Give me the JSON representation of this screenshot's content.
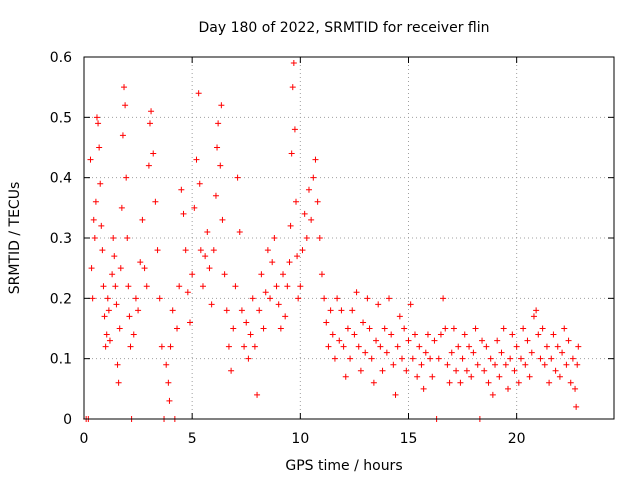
{
  "chart_data": {
    "type": "scatter",
    "title": "Day 180 of 2022, SRMTID for receiver flin",
    "xlabel": "GPS time / hours",
    "ylabel": "SRMTID / TECUs",
    "xlim": [
      0,
      24.5
    ],
    "ylim": [
      0,
      0.6
    ],
    "x_ticks": [
      0,
      5,
      10,
      15,
      20
    ],
    "x_tick_labels": [
      "0",
      "5",
      "10",
      "15",
      "20"
    ],
    "y_ticks": [
      0,
      0.1,
      0.2,
      0.3,
      0.4,
      0.5,
      0.6
    ],
    "y_tick_labels": [
      "0",
      "0.1",
      "0.2",
      "0.3",
      "0.4",
      "0.5",
      "0.6"
    ],
    "grid": true,
    "marker": "+",
    "color": "#ff0000",
    "series": [
      {
        "name": "SRMTID",
        "points": [
          [
            0.1,
            0.0
          ],
          [
            0.2,
            0.0
          ],
          [
            0.3,
            0.43
          ],
          [
            0.35,
            0.25
          ],
          [
            0.4,
            0.2
          ],
          [
            0.45,
            0.33
          ],
          [
            0.5,
            0.3
          ],
          [
            0.55,
            0.36
          ],
          [
            0.6,
            0.5
          ],
          [
            0.65,
            0.49
          ],
          [
            0.7,
            0.45
          ],
          [
            0.75,
            0.39
          ],
          [
            0.8,
            0.32
          ],
          [
            0.85,
            0.28
          ],
          [
            0.9,
            0.22
          ],
          [
            0.95,
            0.17
          ],
          [
            1.0,
            0.12
          ],
          [
            1.05,
            0.14
          ],
          [
            1.1,
            0.2
          ],
          [
            1.15,
            0.18
          ],
          [
            1.2,
            0.13
          ],
          [
            1.3,
            0.24
          ],
          [
            1.35,
            0.3
          ],
          [
            1.4,
            0.27
          ],
          [
            1.45,
            0.22
          ],
          [
            1.5,
            0.19
          ],
          [
            1.55,
            0.09
          ],
          [
            1.6,
            0.06
          ],
          [
            1.65,
            0.15
          ],
          [
            1.7,
            0.25
          ],
          [
            1.75,
            0.35
          ],
          [
            1.8,
            0.47
          ],
          [
            1.85,
            0.55
          ],
          [
            1.9,
            0.52
          ],
          [
            1.95,
            0.4
          ],
          [
            2.0,
            0.3
          ],
          [
            2.05,
            0.22
          ],
          [
            2.1,
            0.17
          ],
          [
            2.15,
            0.12
          ],
          [
            2.2,
            0.0
          ],
          [
            2.3,
            0.14
          ],
          [
            2.4,
            0.2
          ],
          [
            2.5,
            0.18
          ],
          [
            2.6,
            0.26
          ],
          [
            2.7,
            0.33
          ],
          [
            2.8,
            0.25
          ],
          [
            2.9,
            0.22
          ],
          [
            3.0,
            0.42
          ],
          [
            3.05,
            0.49
          ],
          [
            3.1,
            0.51
          ],
          [
            3.2,
            0.44
          ],
          [
            3.3,
            0.36
          ],
          [
            3.4,
            0.28
          ],
          [
            3.5,
            0.2
          ],
          [
            3.6,
            0.12
          ],
          [
            3.7,
            0.0
          ],
          [
            3.8,
            0.09
          ],
          [
            3.9,
            0.06
          ],
          [
            3.95,
            0.03
          ],
          [
            4.0,
            0.12
          ],
          [
            4.1,
            0.18
          ],
          [
            4.2,
            0.0
          ],
          [
            4.3,
            0.15
          ],
          [
            4.4,
            0.22
          ],
          [
            4.5,
            0.38
          ],
          [
            4.6,
            0.34
          ],
          [
            4.7,
            0.28
          ],
          [
            4.8,
            0.21
          ],
          [
            4.9,
            0.16
          ],
          [
            5.0,
            0.24
          ],
          [
            5.1,
            0.35
          ],
          [
            5.2,
            0.43
          ],
          [
            5.3,
            0.54
          ],
          [
            5.35,
            0.39
          ],
          [
            5.4,
            0.28
          ],
          [
            5.5,
            0.22
          ],
          [
            5.6,
            0.27
          ],
          [
            5.7,
            0.31
          ],
          [
            5.8,
            0.25
          ],
          [
            5.9,
            0.19
          ],
          [
            6.0,
            0.28
          ],
          [
            6.1,
            0.37
          ],
          [
            6.15,
            0.45
          ],
          [
            6.2,
            0.49
          ],
          [
            6.3,
            0.42
          ],
          [
            6.35,
            0.52
          ],
          [
            6.4,
            0.33
          ],
          [
            6.5,
            0.24
          ],
          [
            6.6,
            0.18
          ],
          [
            6.7,
            0.12
          ],
          [
            6.8,
            0.08
          ],
          [
            6.9,
            0.15
          ],
          [
            7.0,
            0.22
          ],
          [
            7.1,
            0.4
          ],
          [
            7.2,
            0.31
          ],
          [
            7.3,
            0.18
          ],
          [
            7.4,
            0.12
          ],
          [
            7.5,
            0.16
          ],
          [
            7.6,
            0.1
          ],
          [
            7.7,
            0.14
          ],
          [
            7.8,
            0.2
          ],
          [
            7.9,
            0.12
          ],
          [
            8.0,
            0.04
          ],
          [
            8.1,
            0.18
          ],
          [
            8.2,
            0.24
          ],
          [
            8.3,
            0.15
          ],
          [
            8.4,
            0.21
          ],
          [
            8.5,
            0.28
          ],
          [
            8.6,
            0.2
          ],
          [
            8.7,
            0.26
          ],
          [
            8.8,
            0.3
          ],
          [
            8.9,
            0.22
          ],
          [
            9.0,
            0.19
          ],
          [
            9.1,
            0.15
          ],
          [
            9.2,
            0.24
          ],
          [
            9.3,
            0.17
          ],
          [
            9.4,
            0.22
          ],
          [
            9.5,
            0.26
          ],
          [
            9.55,
            0.32
          ],
          [
            9.6,
            0.44
          ],
          [
            9.65,
            0.55
          ],
          [
            9.7,
            0.59
          ],
          [
            9.75,
            0.48
          ],
          [
            9.8,
            0.36
          ],
          [
            9.85,
            0.27
          ],
          [
            9.9,
            0.2
          ],
          [
            10.0,
            0.22
          ],
          [
            10.1,
            0.28
          ],
          [
            10.2,
            0.34
          ],
          [
            10.3,
            0.3
          ],
          [
            10.4,
            0.38
          ],
          [
            10.5,
            0.33
          ],
          [
            10.6,
            0.4
          ],
          [
            10.7,
            0.43
          ],
          [
            10.8,
            0.36
          ],
          [
            10.9,
            0.3
          ],
          [
            11.0,
            0.24
          ],
          [
            11.1,
            0.2
          ],
          [
            11.2,
            0.16
          ],
          [
            11.3,
            0.12
          ],
          [
            11.4,
            0.18
          ],
          [
            11.5,
            0.14
          ],
          [
            11.6,
            0.1
          ],
          [
            11.7,
            0.2
          ],
          [
            11.8,
            0.13
          ],
          [
            11.9,
            0.18
          ],
          [
            12.0,
            0.12
          ],
          [
            12.1,
            0.07
          ],
          [
            12.2,
            0.15
          ],
          [
            12.3,
            0.1
          ],
          [
            12.4,
            0.18
          ],
          [
            12.5,
            0.14
          ],
          [
            12.6,
            0.21
          ],
          [
            12.7,
            0.12
          ],
          [
            12.8,
            0.08
          ],
          [
            12.9,
            0.16
          ],
          [
            13.0,
            0.11
          ],
          [
            13.1,
            0.2
          ],
          [
            13.2,
            0.15
          ],
          [
            13.3,
            0.1
          ],
          [
            13.4,
            0.06
          ],
          [
            13.5,
            0.13
          ],
          [
            13.6,
            0.19
          ],
          [
            13.7,
            0.12
          ],
          [
            13.8,
            0.08
          ],
          [
            13.9,
            0.15
          ],
          [
            14.0,
            0.11
          ],
          [
            14.1,
            0.2
          ],
          [
            14.2,
            0.14
          ],
          [
            14.3,
            0.09
          ],
          [
            14.4,
            0.04
          ],
          [
            14.5,
            0.12
          ],
          [
            14.6,
            0.17
          ],
          [
            14.7,
            0.1
          ],
          [
            14.8,
            0.15
          ],
          [
            14.9,
            0.08
          ],
          [
            15.0,
            0.13
          ],
          [
            15.1,
            0.19
          ],
          [
            15.2,
            0.1
          ],
          [
            15.3,
            0.14
          ],
          [
            15.4,
            0.07
          ],
          [
            15.5,
            0.12
          ],
          [
            15.6,
            0.09
          ],
          [
            15.7,
            0.05
          ],
          [
            15.8,
            0.11
          ],
          [
            15.9,
            0.14
          ],
          [
            16.0,
            0.1
          ],
          [
            16.1,
            0.07
          ],
          [
            16.2,
            0.13
          ],
          [
            16.3,
            0.0
          ],
          [
            16.4,
            0.1
          ],
          [
            16.5,
            0.14
          ],
          [
            16.6,
            0.2
          ],
          [
            16.7,
            0.15
          ],
          [
            16.8,
            0.09
          ],
          [
            16.9,
            0.06
          ],
          [
            17.0,
            0.11
          ],
          [
            17.1,
            0.15
          ],
          [
            17.2,
            0.08
          ],
          [
            17.3,
            0.12
          ],
          [
            17.4,
            0.06
          ],
          [
            17.5,
            0.1
          ],
          [
            17.6,
            0.14
          ],
          [
            17.7,
            0.08
          ],
          [
            17.8,
            0.12
          ],
          [
            17.9,
            0.07
          ],
          [
            18.0,
            0.11
          ],
          [
            18.1,
            0.15
          ],
          [
            18.2,
            0.09
          ],
          [
            18.3,
            0.0
          ],
          [
            18.4,
            0.13
          ],
          [
            18.5,
            0.08
          ],
          [
            18.6,
            0.12
          ],
          [
            18.7,
            0.06
          ],
          [
            18.8,
            0.1
          ],
          [
            18.9,
            0.04
          ],
          [
            19.0,
            0.09
          ],
          [
            19.1,
            0.13
          ],
          [
            19.2,
            0.07
          ],
          [
            19.3,
            0.11
          ],
          [
            19.4,
            0.15
          ],
          [
            19.5,
            0.09
          ],
          [
            19.6,
            0.05
          ],
          [
            19.7,
            0.1
          ],
          [
            19.8,
            0.14
          ],
          [
            19.9,
            0.08
          ],
          [
            20.0,
            0.12
          ],
          [
            20.1,
            0.06
          ],
          [
            20.2,
            0.1
          ],
          [
            20.3,
            0.15
          ],
          [
            20.4,
            0.09
          ],
          [
            20.5,
            0.13
          ],
          [
            20.6,
            0.07
          ],
          [
            20.7,
            0.11
          ],
          [
            20.8,
            0.17
          ],
          [
            20.9,
            0.18
          ],
          [
            21.0,
            0.14
          ],
          [
            21.1,
            0.1
          ],
          [
            21.2,
            0.15
          ],
          [
            21.3,
            0.09
          ],
          [
            21.4,
            0.12
          ],
          [
            21.5,
            0.06
          ],
          [
            21.6,
            0.1
          ],
          [
            21.7,
            0.14
          ],
          [
            21.8,
            0.08
          ],
          [
            21.9,
            0.12
          ],
          [
            22.0,
            0.07
          ],
          [
            22.1,
            0.11
          ],
          [
            22.2,
            0.15
          ],
          [
            22.3,
            0.09
          ],
          [
            22.4,
            0.13
          ],
          [
            22.5,
            0.06
          ],
          [
            22.6,
            0.1
          ],
          [
            22.7,
            0.05
          ],
          [
            22.75,
            0.02
          ],
          [
            22.8,
            0.09
          ],
          [
            22.85,
            0.12
          ]
        ]
      }
    ]
  }
}
